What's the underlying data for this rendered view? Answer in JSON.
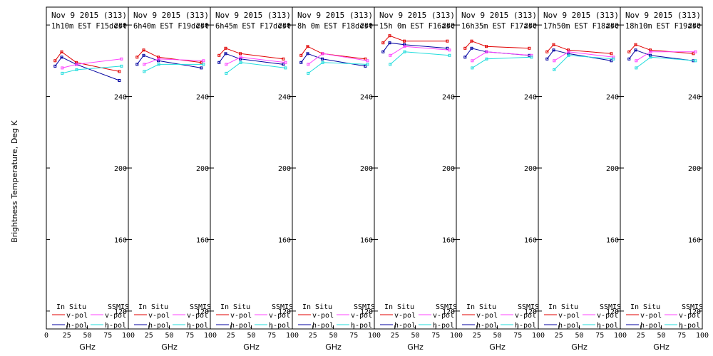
{
  "figure": {
    "ylabel": "Brightness Temperature, Deg K",
    "xlabel": "GHz"
  },
  "legend": {
    "insitu_heading": "In Situ",
    "ssmis_heading": "SSMIS",
    "vpol_label": "v-pol",
    "hpol_label": "h-pol"
  },
  "colors": {
    "insitu_v": "#e00000",
    "insitu_h": "#0000a0",
    "ssmis_v": "#ff44ff",
    "ssmis_h": "#22dddd",
    "axis": "#000000"
  },
  "chart_data": [
    {
      "type": "line",
      "title_line1": "Nov 9 2015 (313)",
      "title_line2": "1h10m EST F15dest",
      "x_ticks": [
        "0",
        "25",
        "50",
        "75",
        "100"
      ],
      "y_ticks": [
        "120",
        "160",
        "200",
        "240",
        "280"
      ],
      "xlim": [
        0,
        100
      ],
      "ylim": [
        110,
        290
      ],
      "series": [
        {
          "key": "insitu_v",
          "x": [
            10.7,
            18.7,
            36.5,
            89
          ],
          "y": [
            260,
            265,
            259,
            254
          ]
        },
        {
          "key": "insitu_h",
          "x": [
            10.7,
            18.7,
            36.5,
            89
          ],
          "y": [
            257,
            262,
            258,
            249
          ]
        },
        {
          "key": "ssmis_v",
          "x": [
            19.35,
            37,
            91.655
          ],
          "y": [
            256,
            258,
            261
          ]
        },
        {
          "key": "ssmis_h",
          "x": [
            19.35,
            37,
            91.655
          ],
          "y": [
            253,
            255,
            257
          ]
        }
      ]
    },
    {
      "type": "line",
      "title_line1": "Nov 9 2015 (313)",
      "title_line2": "6h40m EST F19dest",
      "x_ticks": [
        "",
        "25",
        "50",
        "75",
        "100"
      ],
      "y_ticks": [
        "120",
        "160",
        "200",
        "240",
        "280"
      ],
      "xlim": [
        0,
        100
      ],
      "ylim": [
        110,
        290
      ],
      "series": [
        {
          "key": "insitu_v",
          "x": [
            10.7,
            18.7,
            36.5,
            89
          ],
          "y": [
            262,
            266,
            262,
            259
          ]
        },
        {
          "key": "insitu_h",
          "x": [
            10.7,
            18.7,
            36.5,
            89
          ],
          "y": [
            258,
            263,
            260,
            256
          ]
        },
        {
          "key": "ssmis_v",
          "x": [
            19.35,
            37,
            91.655
          ],
          "y": [
            258,
            261,
            260
          ]
        },
        {
          "key": "ssmis_h",
          "x": [
            19.35,
            37,
            91.655
          ],
          "y": [
            254,
            258,
            258
          ]
        }
      ]
    },
    {
      "type": "line",
      "title_line1": "Nov 9 2015 (313)",
      "title_line2": "6h45m EST F17dest",
      "x_ticks": [
        "",
        "25",
        "50",
        "75",
        "100"
      ],
      "y_ticks": [
        "120",
        "160",
        "200",
        "240",
        "280"
      ],
      "xlim": [
        0,
        100
      ],
      "ylim": [
        110,
        290
      ],
      "series": [
        {
          "key": "insitu_v",
          "x": [
            10.7,
            18.7,
            36.5,
            89
          ],
          "y": [
            263,
            267,
            264,
            261
          ]
        },
        {
          "key": "insitu_h",
          "x": [
            10.7,
            18.7,
            36.5,
            89
          ],
          "y": [
            259,
            264,
            261,
            258
          ]
        },
        {
          "key": "ssmis_v",
          "x": [
            19.35,
            37,
            91.655
          ],
          "y": [
            258,
            262,
            259
          ]
        },
        {
          "key": "ssmis_h",
          "x": [
            19.35,
            37,
            91.655
          ],
          "y": [
            253,
            259,
            256
          ]
        }
      ]
    },
    {
      "type": "line",
      "title_line1": "Nov 9 2015 (313)",
      "title_line2": "8h 0m EST F18dest",
      "x_ticks": [
        "",
        "25",
        "50",
        "75",
        "100"
      ],
      "y_ticks": [
        "120",
        "160",
        "200",
        "240",
        "280"
      ],
      "xlim": [
        0,
        100
      ],
      "ylim": [
        110,
        290
      ],
      "series": [
        {
          "key": "insitu_v",
          "x": [
            10.7,
            18.7,
            36.5,
            89
          ],
          "y": [
            263,
            268,
            264,
            261
          ]
        },
        {
          "key": "insitu_h",
          "x": [
            10.7,
            18.7,
            36.5,
            89
          ],
          "y": [
            259,
            264,
            261,
            257
          ]
        },
        {
          "key": "ssmis_v",
          "x": [
            19.35,
            37,
            91.655
          ],
          "y": [
            258,
            264,
            260
          ]
        },
        {
          "key": "ssmis_h",
          "x": [
            19.35,
            37,
            91.655
          ],
          "y": [
            253,
            259,
            258
          ]
        }
      ]
    },
    {
      "type": "line",
      "title_line1": "Nov 9 2015 (313)",
      "title_line2": "15h 0m EST F16asc",
      "x_ticks": [
        "",
        "25",
        "50",
        "75",
        "100"
      ],
      "y_ticks": [
        "120",
        "160",
        "200",
        "240",
        "280"
      ],
      "xlim": [
        0,
        100
      ],
      "ylim": [
        110,
        290
      ],
      "series": [
        {
          "key": "insitu_v",
          "x": [
            10.7,
            18.7,
            36.5,
            89
          ],
          "y": [
            270,
            274,
            271,
            271
          ]
        },
        {
          "key": "insitu_h",
          "x": [
            10.7,
            18.7,
            36.5,
            89
          ],
          "y": [
            265,
            270,
            269,
            267
          ]
        },
        {
          "key": "ssmis_v",
          "x": [
            19.35,
            37,
            91.655
          ],
          "y": [
            263,
            268,
            266
          ]
        },
        {
          "key": "ssmis_h",
          "x": [
            19.35,
            37,
            91.655
          ],
          "y": [
            258,
            265,
            263
          ]
        }
      ]
    },
    {
      "type": "line",
      "title_line1": "Nov 9 2015 (313)",
      "title_line2": "16h35m EST F17asc",
      "x_ticks": [
        "",
        "25",
        "50",
        "75",
        "100"
      ],
      "y_ticks": [
        "120",
        "160",
        "200",
        "240",
        "280"
      ],
      "xlim": [
        0,
        100
      ],
      "ylim": [
        110,
        290
      ],
      "series": [
        {
          "key": "insitu_v",
          "x": [
            10.7,
            18.7,
            36.5,
            89
          ],
          "y": [
            267,
            271,
            268,
            267
          ]
        },
        {
          "key": "insitu_h",
          "x": [
            10.7,
            18.7,
            36.5,
            89
          ],
          "y": [
            262,
            267,
            265,
            263
          ]
        },
        {
          "key": "ssmis_v",
          "x": [
            19.35,
            37,
            91.655
          ],
          "y": [
            260,
            265,
            263
          ]
        },
        {
          "key": "ssmis_h",
          "x": [
            19.35,
            37,
            91.655
          ],
          "y": [
            256,
            261,
            262
          ]
        }
      ]
    },
    {
      "type": "line",
      "title_line1": "Nov 9 2015 (313)",
      "title_line2": "17h50m EST F18asc",
      "x_ticks": [
        "",
        "25",
        "50",
        "75",
        "100"
      ],
      "y_ticks": [
        "120",
        "160",
        "200",
        "240",
        "280"
      ],
      "xlim": [
        0,
        100
      ],
      "ylim": [
        110,
        290
      ],
      "series": [
        {
          "key": "insitu_v",
          "x": [
            10.7,
            18.7,
            36.5,
            89
          ],
          "y": [
            265,
            269,
            266,
            264
          ]
        },
        {
          "key": "insitu_h",
          "x": [
            10.7,
            18.7,
            36.5,
            89
          ],
          "y": [
            261,
            266,
            264,
            260
          ]
        },
        {
          "key": "ssmis_v",
          "x": [
            19.35,
            37,
            91.655
          ],
          "y": [
            260,
            265,
            262
          ]
        },
        {
          "key": "ssmis_h",
          "x": [
            19.35,
            37,
            91.655
          ],
          "y": [
            255,
            263,
            261
          ]
        }
      ]
    },
    {
      "type": "line",
      "title_line1": "Nov 9 2015 (313)",
      "title_line2": "18h10m EST F19asc",
      "x_ticks": [
        "",
        "25",
        "50",
        "75",
        "100"
      ],
      "y_ticks": [
        "120",
        "160",
        "200",
        "240",
        "280"
      ],
      "xlim": [
        0,
        100
      ],
      "ylim": [
        110,
        290
      ],
      "series": [
        {
          "key": "insitu_v",
          "x": [
            10.7,
            18.7,
            36.5,
            89
          ],
          "y": [
            265,
            269,
            266,
            264
          ]
        },
        {
          "key": "insitu_h",
          "x": [
            10.7,
            18.7,
            36.5,
            89
          ],
          "y": [
            261,
            266,
            263,
            260
          ]
        },
        {
          "key": "ssmis_v",
          "x": [
            19.35,
            37,
            91.655
          ],
          "y": [
            260,
            265,
            265
          ]
        },
        {
          "key": "ssmis_h",
          "x": [
            19.35,
            37,
            91.655
          ],
          "y": [
            256,
            262,
            260
          ]
        }
      ]
    }
  ]
}
